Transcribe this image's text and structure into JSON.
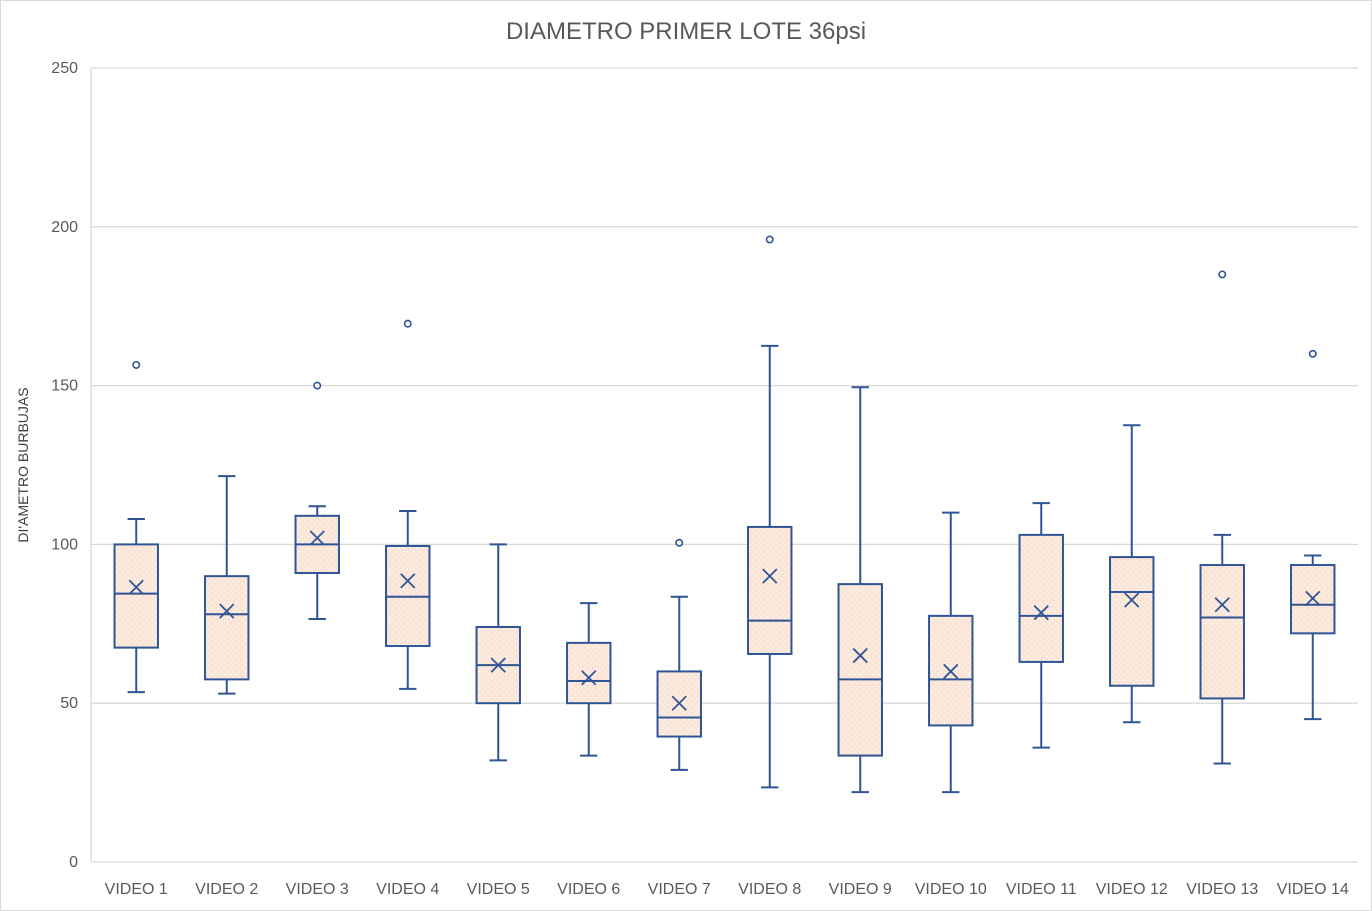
{
  "chart_data": {
    "type": "boxplot",
    "title": "DIAMETRO PRIMER LOTE 36psi",
    "ylabel": "DI'AMETRO BURBUJAS",
    "xlabel": "",
    "ylim": [
      0,
      250
    ],
    "yticks": [
      0,
      50,
      100,
      150,
      200,
      250
    ],
    "grid": true,
    "legend": "none",
    "colors": {
      "box_fill": "#fbe5d6",
      "stroke": "#2f5597",
      "grid": "#d9d9d9",
      "text": "#595959"
    },
    "categories": [
      "VIDEO 1",
      "VIDEO 2",
      "VIDEO 3",
      "VIDEO 4",
      "VIDEO 5",
      "VIDEO 6",
      "VIDEO 7",
      "VIDEO 8",
      "VIDEO 9",
      "VIDEO 10",
      "VIDEO 11",
      "VIDEO 12",
      "VIDEO 13",
      "VIDEO 14"
    ],
    "boxes": [
      {
        "min": 53.5,
        "q1": 67.5,
        "median": 84.5,
        "q3": 100,
        "max": 108,
        "mean": 86.5,
        "outliers": [
          156.5
        ]
      },
      {
        "min": 53,
        "q1": 57.5,
        "median": 78,
        "q3": 90,
        "max": 121.5,
        "mean": 79,
        "outliers": []
      },
      {
        "min": 76.5,
        "q1": 91,
        "median": 100,
        "q3": 109,
        "max": 112,
        "mean": 102,
        "outliers": [
          150
        ]
      },
      {
        "min": 54.5,
        "q1": 68,
        "median": 83.5,
        "q3": 99.5,
        "max": 110.5,
        "mean": 88.5,
        "outliers": [
          169.5
        ]
      },
      {
        "min": 32,
        "q1": 50,
        "median": 62,
        "q3": 74,
        "max": 100,
        "mean": 62,
        "outliers": []
      },
      {
        "min": 33.5,
        "q1": 50,
        "median": 57,
        "q3": 69,
        "max": 81.5,
        "mean": 58,
        "outliers": []
      },
      {
        "min": 29,
        "q1": 39.5,
        "median": 45.5,
        "q3": 60,
        "max": 83.5,
        "mean": 50,
        "outliers": [
          100.5
        ]
      },
      {
        "min": 23.5,
        "q1": 65.5,
        "median": 76,
        "q3": 105.5,
        "max": 162.5,
        "mean": 90,
        "outliers": [
          196
        ]
      },
      {
        "min": 22,
        "q1": 33.5,
        "median": 57.5,
        "q3": 87.5,
        "max": 149.5,
        "mean": 65,
        "outliers": []
      },
      {
        "min": 22,
        "q1": 43,
        "median": 57.5,
        "q3": 77.5,
        "max": 110,
        "mean": 60,
        "outliers": []
      },
      {
        "min": 36,
        "q1": 63,
        "median": 77.5,
        "q3": 103,
        "max": 113,
        "mean": 78.5,
        "outliers": []
      },
      {
        "min": 44,
        "q1": 55.5,
        "median": 85,
        "q3": 96,
        "max": 137.5,
        "mean": 82.5,
        "outliers": []
      },
      {
        "min": 31,
        "q1": 51.5,
        "median": 77,
        "q3": 93.5,
        "max": 103,
        "mean": 81,
        "outliers": [
          185
        ]
      },
      {
        "min": 45,
        "q1": 72,
        "median": 81,
        "q3": 93.5,
        "max": 96.5,
        "mean": 83,
        "outliers": [
          160
        ]
      }
    ]
  }
}
